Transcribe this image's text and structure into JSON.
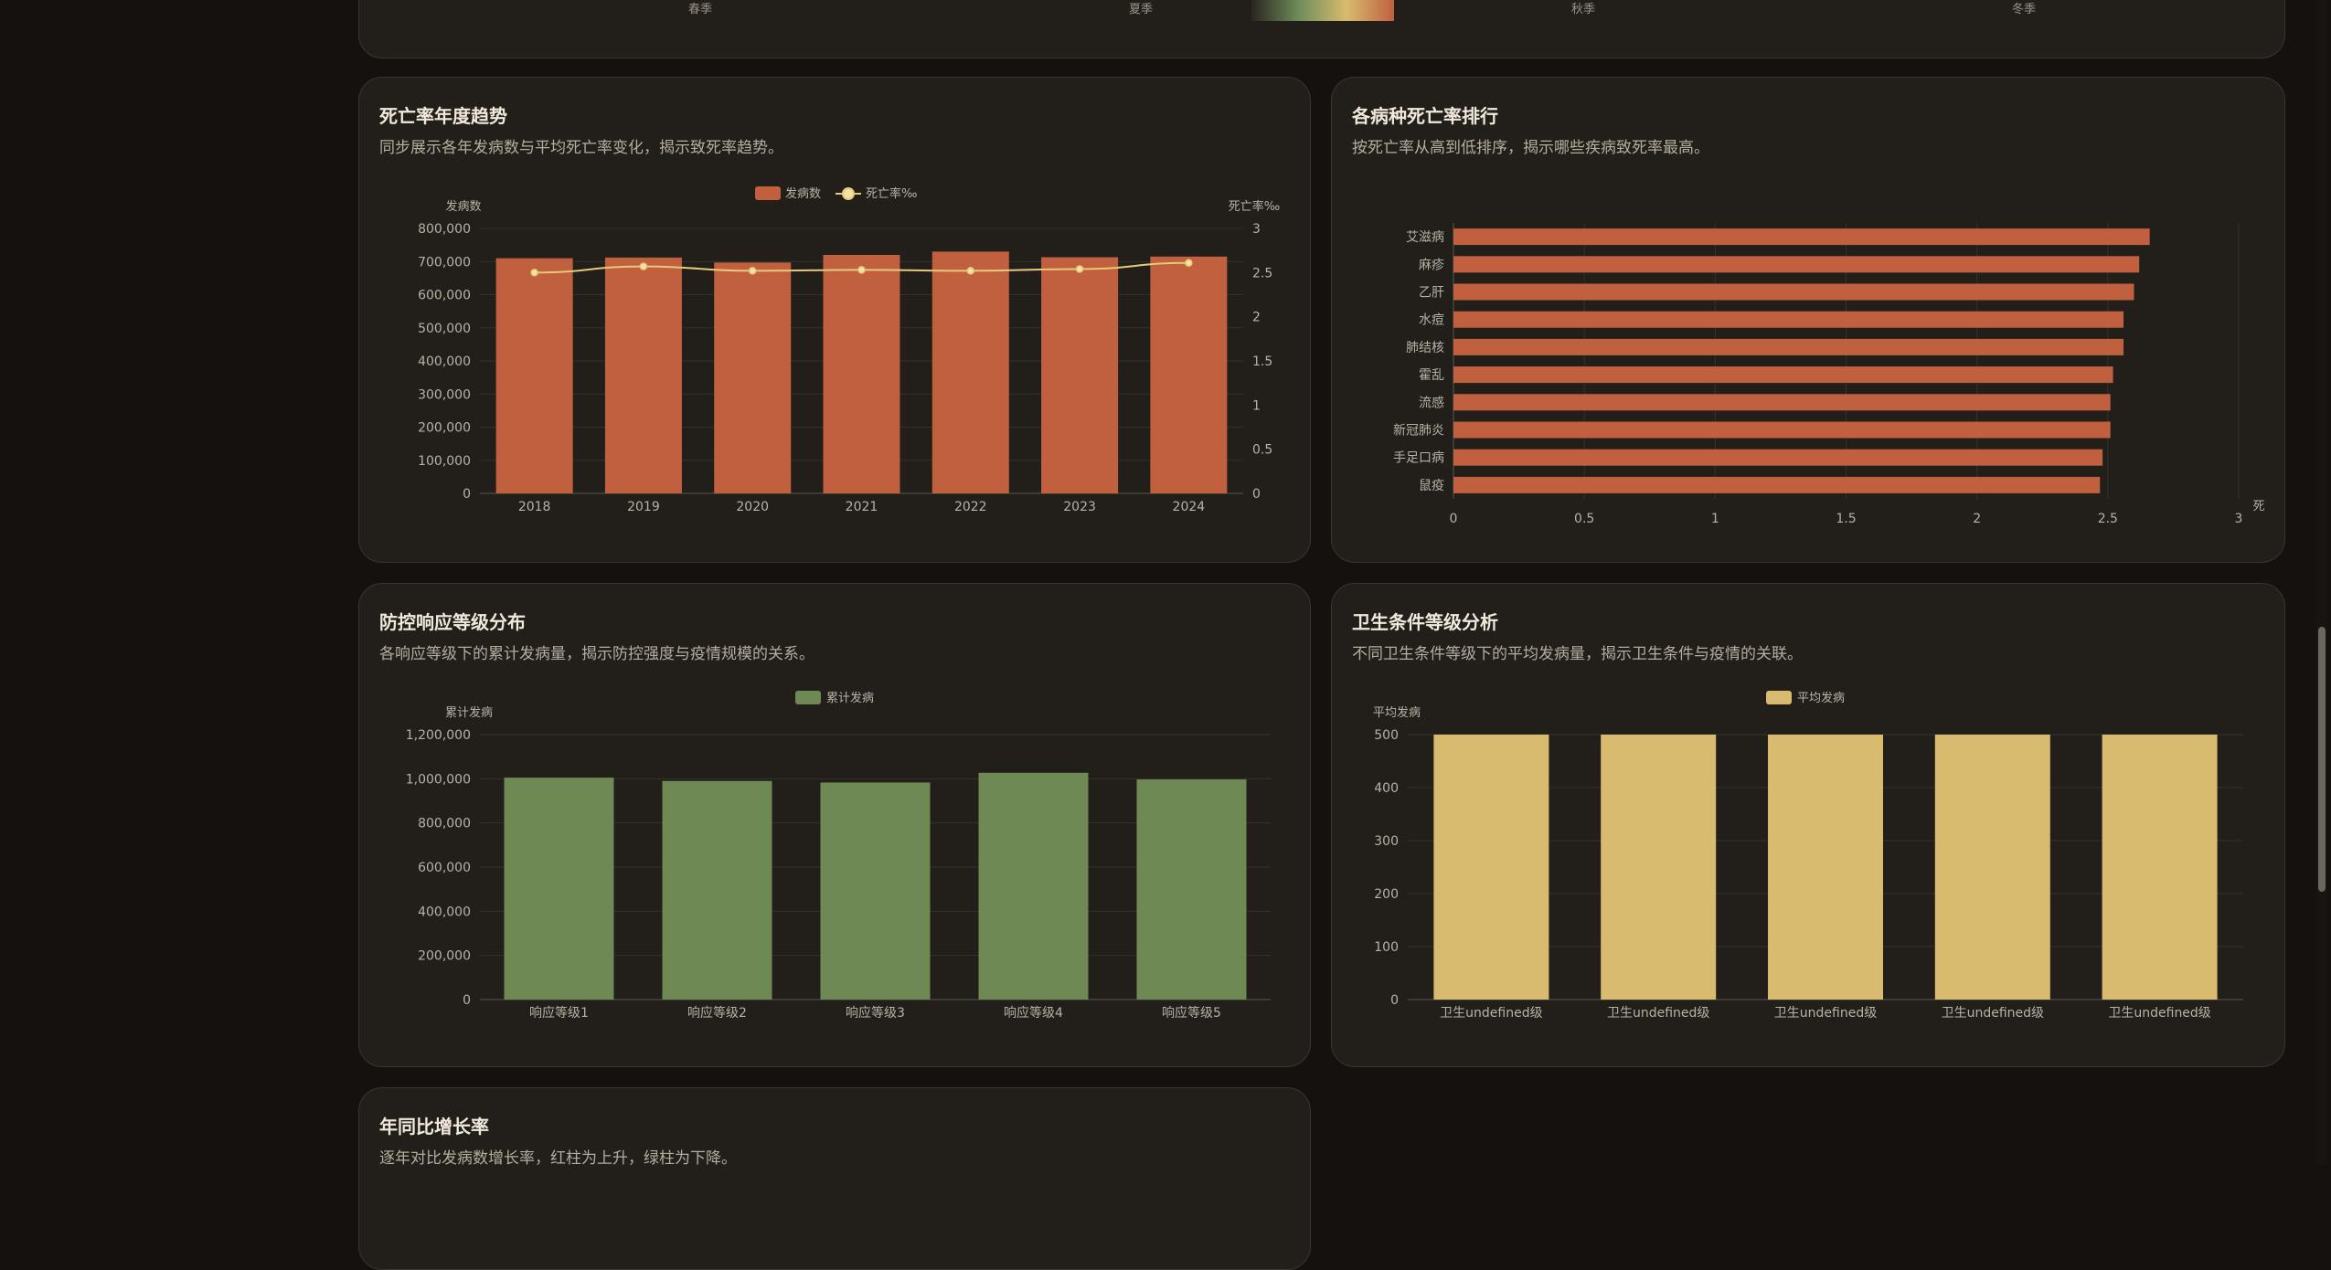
{
  "top_panel": {
    "season_labels": [
      "春季",
      "夏季",
      "秋季",
      "冬季"
    ],
    "gradient_colors": [
      "#2a2520",
      "#6f8d5a",
      "#d8bb6e",
      "#c0603f"
    ]
  },
  "panels": {
    "mortality_trend": {
      "title": "死亡率年度趋势",
      "subtitle": "同步展示各年发病数与平均死亡率变化，揭示致死率趋势。"
    },
    "disease_ranking": {
      "title": "各病种死亡率排行",
      "subtitle": "按死亡率从高到低排序，揭示哪些疾病致死率最高。"
    },
    "response_level": {
      "title": "防控响应等级分布",
      "subtitle": "各响应等级下的累计发病量，揭示防控强度与疫情规模的关系。"
    },
    "sanitation": {
      "title": "卫生条件等级分析",
      "subtitle": "不同卫生条件等级下的平均发病量，揭示卫生条件与疫情的关联。"
    },
    "yoy_growth": {
      "title": "年同比增长率",
      "subtitle": "逐年对比发病数增长率，红柱为上升，绿柱为下降。"
    }
  },
  "chart_data": [
    {
      "id": "mortality_trend",
      "type": "bar",
      "categories": [
        "2018",
        "2019",
        "2020",
        "2021",
        "2022",
        "2023",
        "2024"
      ],
      "series": [
        {
          "name": "发病数",
          "type": "bar",
          "axis": "left",
          "color": "#c0603f",
          "values": [
            710000,
            712000,
            697000,
            720000,
            730000,
            713000,
            715000
          ]
        },
        {
          "name": "死亡率‰",
          "type": "line",
          "axis": "right",
          "color": "#e6c97a",
          "values": [
            2.5,
            2.57,
            2.52,
            2.53,
            2.52,
            2.54,
            2.61
          ]
        }
      ],
      "ylabel_left": "发病数",
      "ylabel_right": "死亡率‰",
      "ylim_left": [
        0,
        800000
      ],
      "yticks_left": [
        "0",
        "100,000",
        "200,000",
        "300,000",
        "400,000",
        "500,000",
        "600,000",
        "700,000",
        "800,000"
      ],
      "ylim_right": [
        0,
        3
      ],
      "yticks_right": [
        "0",
        "0.5",
        "1",
        "1.5",
        "2",
        "2.5",
        "3"
      ],
      "legend": "top-center",
      "grid": true
    },
    {
      "id": "disease_ranking",
      "type": "bar",
      "orientation": "horizontal",
      "categories": [
        "艾滋病",
        "麻疹",
        "乙肝",
        "水痘",
        "肺结核",
        "霍乱",
        "流感",
        "新冠肺炎",
        "手足口病",
        "鼠疫"
      ],
      "values": [
        2.66,
        2.62,
        2.6,
        2.56,
        2.56,
        2.52,
        2.51,
        2.51,
        2.48,
        2.47
      ],
      "color": "#c0603f",
      "xlim": [
        0,
        3
      ],
      "xticks": [
        "0",
        "0.5",
        "1",
        "1.5",
        "2",
        "2.5",
        "3"
      ],
      "xlabel": "死",
      "grid": true
    },
    {
      "id": "response_level",
      "type": "bar",
      "categories": [
        "响应等级1",
        "响应等级2",
        "响应等级3",
        "响应等级4",
        "响应等级5"
      ],
      "series": [
        {
          "name": "累计发病",
          "color": "#6f8955",
          "values": [
            1005000,
            990000,
            983000,
            1027000,
            997000
          ]
        }
      ],
      "ylabel": "累计发病",
      "ylim": [
        0,
        1200000
      ],
      "yticks": [
        "0",
        "200,000",
        "400,000",
        "600,000",
        "800,000",
        "1,000,000",
        "1,200,000"
      ],
      "legend": "top-center",
      "grid": true
    },
    {
      "id": "sanitation",
      "type": "bar",
      "categories": [
        "卫生undefined级",
        "卫生undefined级",
        "卫生undefined级",
        "卫生undefined级",
        "卫生undefined级"
      ],
      "series": [
        {
          "name": "平均发病",
          "color": "#d8bb6e",
          "values": [
            500,
            500,
            500,
            500,
            500
          ]
        }
      ],
      "ylabel": "平均发病",
      "ylim": [
        0,
        500
      ],
      "yticks": [
        "0",
        "100",
        "200",
        "300",
        "400",
        "500"
      ],
      "legend": "top-center",
      "grid": true
    }
  ]
}
